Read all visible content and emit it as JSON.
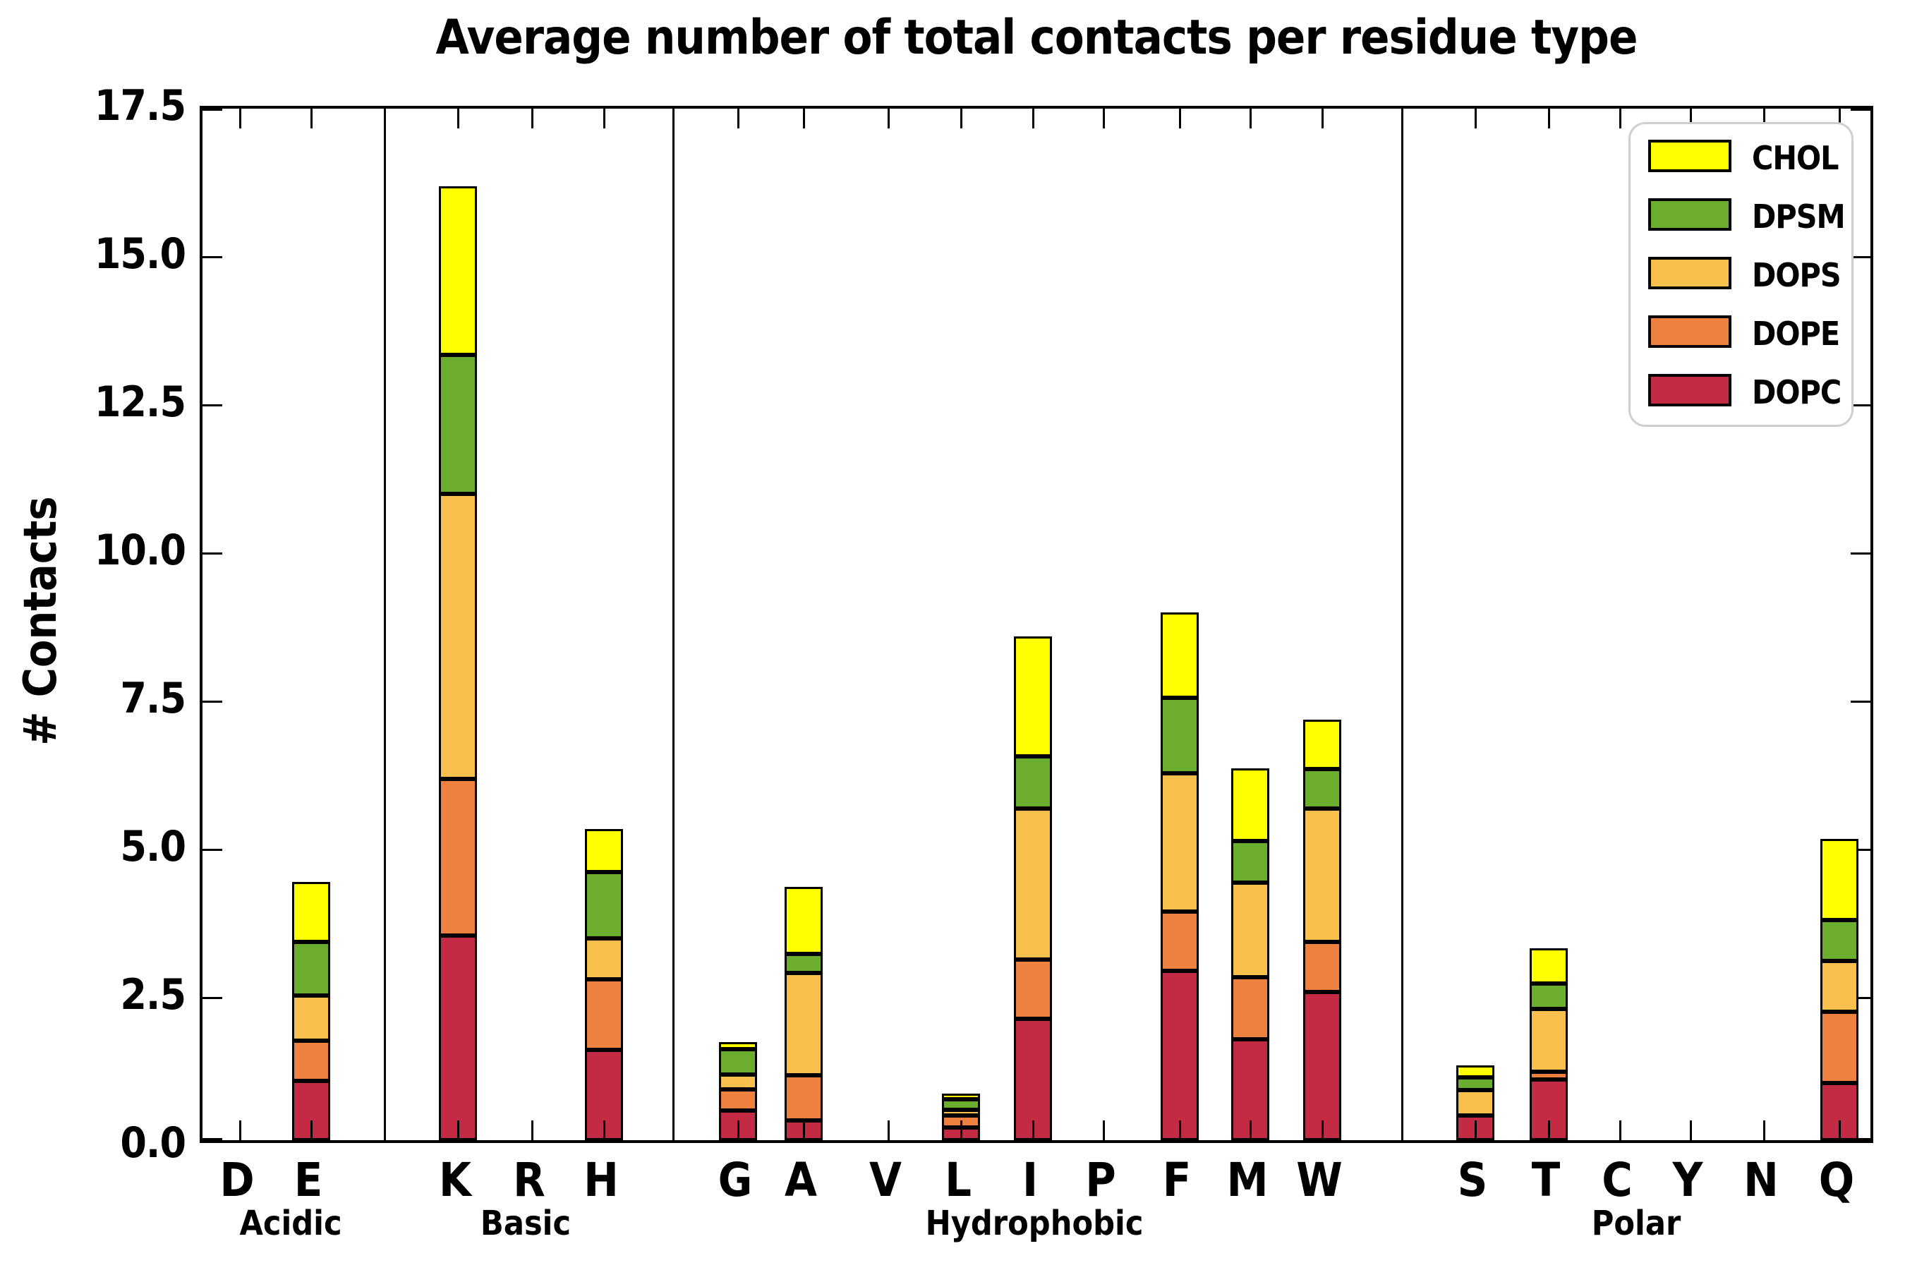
{
  "title": "Average number of total contacts per residue type",
  "ylabel": "# Contacts",
  "chart_data": {
    "type": "bar",
    "stacked": true,
    "title": "Average number of total contacts per residue type",
    "xlabel": "",
    "ylabel": "# Contacts",
    "ylim": [
      0,
      17.5
    ],
    "yticks": [
      "0.0",
      "2.5",
      "5.0",
      "7.5",
      "10.0",
      "12.5",
      "15.0",
      "17.5"
    ],
    "grid": false,
    "legend_position": "upper right",
    "legend_order_top_to_bottom": [
      "CHOL",
      "DPSM",
      "DOPS",
      "DOPE",
      "DOPC"
    ],
    "groups": [
      {
        "name": "Acidic",
        "residues": [
          "D",
          "E"
        ]
      },
      {
        "name": "Basic",
        "residues": [
          "K",
          "R",
          "H"
        ]
      },
      {
        "name": "Hydrophobic",
        "residues": [
          "G",
          "A",
          "V",
          "L",
          "I",
          "P",
          "F",
          "M",
          "W"
        ]
      },
      {
        "name": "Polar",
        "residues": [
          "S",
          "T",
          "C",
          "Y",
          "N",
          "Q"
        ]
      }
    ],
    "categories": [
      "D",
      "E",
      "K",
      "R",
      "H",
      "G",
      "A",
      "V",
      "L",
      "I",
      "P",
      "F",
      "M",
      "W",
      "S",
      "T",
      "C",
      "Y",
      "N",
      "Q"
    ],
    "series": [
      {
        "name": "DOPC",
        "color": "#C32B44",
        "values": [
          0,
          1.0,
          3.45,
          0,
          1.52,
          0.5,
          0.33,
          0,
          0.21,
          2.05,
          0,
          2.86,
          1.7,
          2.5,
          0.42,
          1.02,
          0,
          0,
          0,
          0.96
        ]
      },
      {
        "name": "DOPE",
        "color": "#EF8140",
        "values": [
          0,
          0.68,
          2.65,
          0,
          1.2,
          0.36,
          0.76,
          0,
          0.21,
          1.0,
          0,
          1.0,
          1.05,
          0.84,
          0.0,
          0.14,
          0,
          0,
          0,
          1.21
        ]
      },
      {
        "name": "DOPS",
        "color": "#FAC04D",
        "values": [
          0,
          0.76,
          4.8,
          0,
          0.68,
          0.25,
          1.73,
          0,
          0.04,
          2.55,
          0,
          2.33,
          1.6,
          2.26,
          0.43,
          1.05,
          0,
          0,
          0,
          0.86
        ]
      },
      {
        "name": "DPSM",
        "color": "#6BAD2D",
        "values": [
          0,
          0.9,
          2.35,
          0,
          1.12,
          0.43,
          0.32,
          0,
          0.17,
          0.88,
          0,
          1.27,
          0.7,
          0.66,
          0.21,
          0.43,
          0,
          0,
          0,
          0.68
        ]
      },
      {
        "name": "CHOL",
        "color": "#FFFF00",
        "values": [
          0,
          1.02,
          2.85,
          0,
          0.73,
          0.12,
          1.13,
          0,
          0.05,
          2.02,
          0,
          1.44,
          1.22,
          0.84,
          0.2,
          0.6,
          0,
          0,
          0,
          1.37
        ]
      }
    ],
    "totals": [
      0,
      4.36,
      16.1,
      0,
      5.25,
      1.66,
      4.27,
      0,
      0.68,
      8.5,
      0,
      8.9,
      6.27,
      7.1,
      1.26,
      3.24,
      0,
      0,
      0,
      5.08
    ]
  },
  "legend": {
    "entries": [
      {
        "label": "CHOL",
        "color": "#FFFF00"
      },
      {
        "label": "DPSM",
        "color": "#6BAD2D"
      },
      {
        "label": "DOPS",
        "color": "#FAC04D"
      },
      {
        "label": "DOPE",
        "color": "#EF8140"
      },
      {
        "label": "DOPC",
        "color": "#C32B44"
      }
    ]
  }
}
